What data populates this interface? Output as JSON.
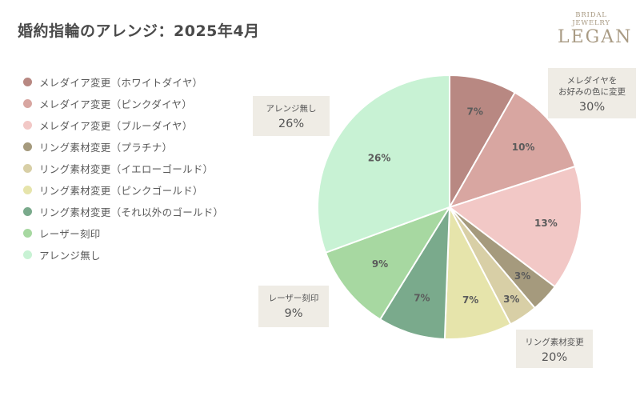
{
  "title": "婚約指輪のアレンジ：2025年4月",
  "logo": {
    "small": "BRIDAL JEWELRY",
    "big": "LEGAN"
  },
  "chart_data": {
    "type": "pie",
    "title": "婚約指輪のアレンジ：2025年4月",
    "start_angle_deg": 0,
    "direction": "clockwise",
    "slices": [
      {
        "label": "メレダイア変更（ホワイトダイヤ）",
        "value": 7,
        "display": "7%",
        "color": "#b88882"
      },
      {
        "label": "メレダイア変更（ピンクダイヤ）",
        "value": 10,
        "display": "10%",
        "color": "#d8a6a1"
      },
      {
        "label": "メレダイア変更（ブルーダイヤ）",
        "value": 13,
        "display": "13%",
        "color": "#f2c8c6"
      },
      {
        "label": "リング素材変更（プラチナ）",
        "value": 3,
        "display": "3%",
        "color": "#a59a7d"
      },
      {
        "label": "リング素材変更（イエローゴールド）",
        "value": 3,
        "display": "3%",
        "color": "#d8cfa6"
      },
      {
        "label": "リング素材変更（ピンクゴールド）",
        "value": 7,
        "display": "7%",
        "color": "#e6e4ab"
      },
      {
        "label": "リング素材変更（それ以外のゴールド）",
        "value": 7,
        "display": "7%",
        "color": "#7aaa8c"
      },
      {
        "label": "レーザー刻印",
        "value": 9,
        "display": "9%",
        "color": "#a7d8a1"
      },
      {
        "label": "アレンジ無し",
        "value": 26,
        "display": "26%",
        "color": "#c8f2d4"
      }
    ],
    "callouts": [
      {
        "text_lines": [
          "メレダイヤを",
          "お好みの色に変更"
        ],
        "value": "30%"
      },
      {
        "text_lines": [
          "リング素材変更"
        ],
        "value": "20%"
      },
      {
        "text_lines": [
          "レーザー刻印"
        ],
        "value": "9%"
      },
      {
        "text_lines": [
          "アレンジ無し"
        ],
        "value": "26%"
      }
    ]
  }
}
